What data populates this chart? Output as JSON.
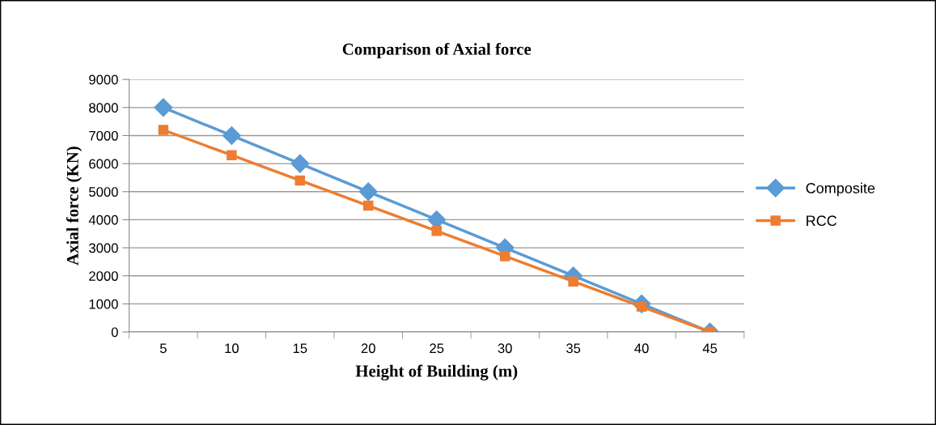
{
  "chart_data": {
    "type": "line",
    "title": "Comparison of Axial force",
    "xlabel": "Height of Building (m)",
    "ylabel": "Axial force (KN)",
    "categories": [
      "5",
      "10",
      "15",
      "20",
      "25",
      "30",
      "35",
      "40",
      "45"
    ],
    "series": [
      {
        "name": "Composite",
        "color": "#5b9bd5",
        "marker": "diamond",
        "values": [
          8000,
          7000,
          6000,
          5000,
          4000,
          3000,
          2000,
          1000,
          0
        ]
      },
      {
        "name": "RCC",
        "color": "#ed7d31",
        "marker": "square",
        "values": [
          7200,
          6300,
          5400,
          4500,
          3600,
          2700,
          1800,
          900,
          0
        ]
      }
    ],
    "ylim": [
      0,
      9000
    ],
    "yticks": [
      0,
      1000,
      2000,
      3000,
      4000,
      5000,
      6000,
      7000,
      8000,
      9000
    ],
    "grid": "y",
    "legend": "right",
    "line_style": "solid"
  }
}
